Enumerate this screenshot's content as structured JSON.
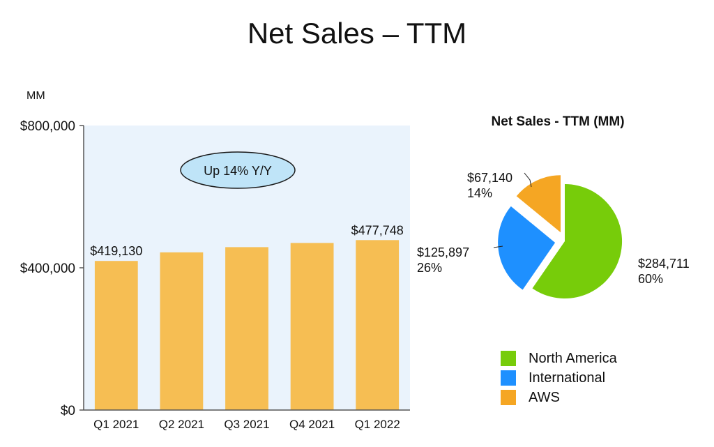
{
  "page": {
    "title": "Net Sales – TTM"
  },
  "colors": {
    "bar": "#F6BE53",
    "plot_bg": "#EAF3FC",
    "callout_fill": "#BFE4F8",
    "north_america": "#77CC0A",
    "international": "#1E90FF",
    "aws": "#F5A623"
  },
  "chart_data": [
    {
      "type": "bar",
      "unit_label": "MM",
      "categories": [
        "Q1 2021",
        "Q2 2021",
        "Q3 2021",
        "Q4 2021",
        "Q1 2022"
      ],
      "values": [
        419130,
        443300,
        457965,
        469822,
        477748
      ],
      "data_labels": [
        "$419,130",
        "",
        "",
        "",
        "$477,748"
      ],
      "y_ticks": [
        0,
        400000,
        800000
      ],
      "y_tick_labels": [
        "$0",
        "$400,000",
        "$800,000"
      ],
      "ylim": [
        0,
        800000
      ],
      "annotation": "Up 14% Y/Y",
      "grid": false,
      "legend": "none"
    },
    {
      "type": "pie",
      "title": "Net Sales - TTM (MM)",
      "slices": [
        {
          "label": "North America",
          "value": 284711,
          "value_label": "$284,711",
          "percent_label": "60%"
        },
        {
          "label": "International",
          "value": 125897,
          "value_label": "$125,897",
          "percent_label": "26%"
        },
        {
          "label": "AWS",
          "value": 67140,
          "value_label": "$67,140",
          "percent_label": "14%"
        }
      ],
      "legend": "bottom"
    }
  ]
}
